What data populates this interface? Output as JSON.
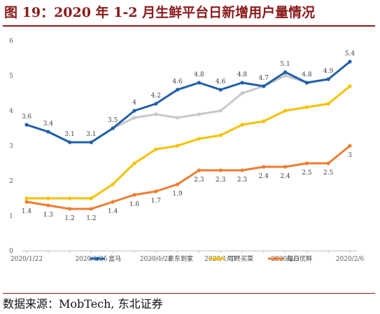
{
  "figure": {
    "title": "图 19：2020 年 1-2 月生鲜平台日新增用户量情况",
    "source": "数据来源：MobTech, 东北证券"
  },
  "chart_data": {
    "type": "line",
    "x": [
      "2020/1/22",
      "2020/1/23",
      "2020/1/24",
      "2020/1/25",
      "2020/1/26",
      "2020/1/27",
      "2020/1/28",
      "2020/1/29",
      "2020/1/30",
      "2020/1/31",
      "2020/2/1",
      "2020/2/2",
      "2020/2/3",
      "2020/2/4",
      "2020/2/5",
      "2020/2/6"
    ],
    "xticks": [
      "2020/1/22",
      "2020/1/25",
      "2020/1/28",
      "2020/1/31",
      "2020/2/3",
      "2020/2/6"
    ],
    "yticks": [
      0,
      1,
      2,
      3,
      4,
      5,
      6
    ],
    "ylim": [
      0,
      6
    ],
    "grid": false,
    "legend_position": "bottom",
    "series": [
      {
        "name": "盒马",
        "color": "#1f5fa8",
        "values": [
          3.6,
          3.4,
          3.1,
          3.1,
          3.5,
          4.0,
          4.2,
          4.6,
          4.8,
          4.6,
          4.8,
          4.7,
          5.1,
          4.8,
          4.9,
          5.4
        ],
        "labels": [
          null,
          null,
          null,
          null,
          null,
          "4",
          "4.2",
          "4.6",
          "4.8",
          "4.6",
          "4.8",
          "4.7",
          "5.1",
          "4.8",
          null,
          null
        ]
      },
      {
        "name": "京东到家",
        "color": "#c8c8c8",
        "values": [
          3.6,
          3.4,
          3.1,
          3.1,
          3.5,
          3.8,
          3.9,
          3.8,
          3.9,
          4.0,
          4.5,
          4.7,
          5.0,
          4.8,
          4.9,
          5.4
        ],
        "labels": [
          "3.6",
          "3.4",
          "3.1",
          "3.1",
          "3.5",
          null,
          null,
          null,
          null,
          null,
          null,
          null,
          null,
          null,
          "4.9",
          "5.4"
        ]
      },
      {
        "name": "叮咚买菜",
        "color": "#f5c200",
        "values": [
          1.5,
          1.5,
          1.5,
          1.5,
          1.9,
          2.5,
          2.9,
          3.0,
          3.2,
          3.3,
          3.6,
          3.7,
          4.0,
          4.1,
          4.2,
          4.7
        ],
        "labels": []
      },
      {
        "name": "每日优鲜",
        "color": "#ed7d31",
        "values": [
          1.4,
          1.3,
          1.2,
          1.2,
          1.4,
          1.6,
          1.7,
          1.9,
          2.3,
          2.3,
          2.3,
          2.4,
          2.4,
          2.5,
          2.5,
          3.0
        ],
        "labels": [
          "1.4",
          "1.3",
          "1.2",
          "1.2",
          "1.4",
          "1.6",
          "1.7",
          "1.9",
          "2.3",
          "2.3",
          "2.3",
          "2.4",
          "2.4",
          "2.5",
          "2.5",
          "3"
        ]
      }
    ]
  }
}
